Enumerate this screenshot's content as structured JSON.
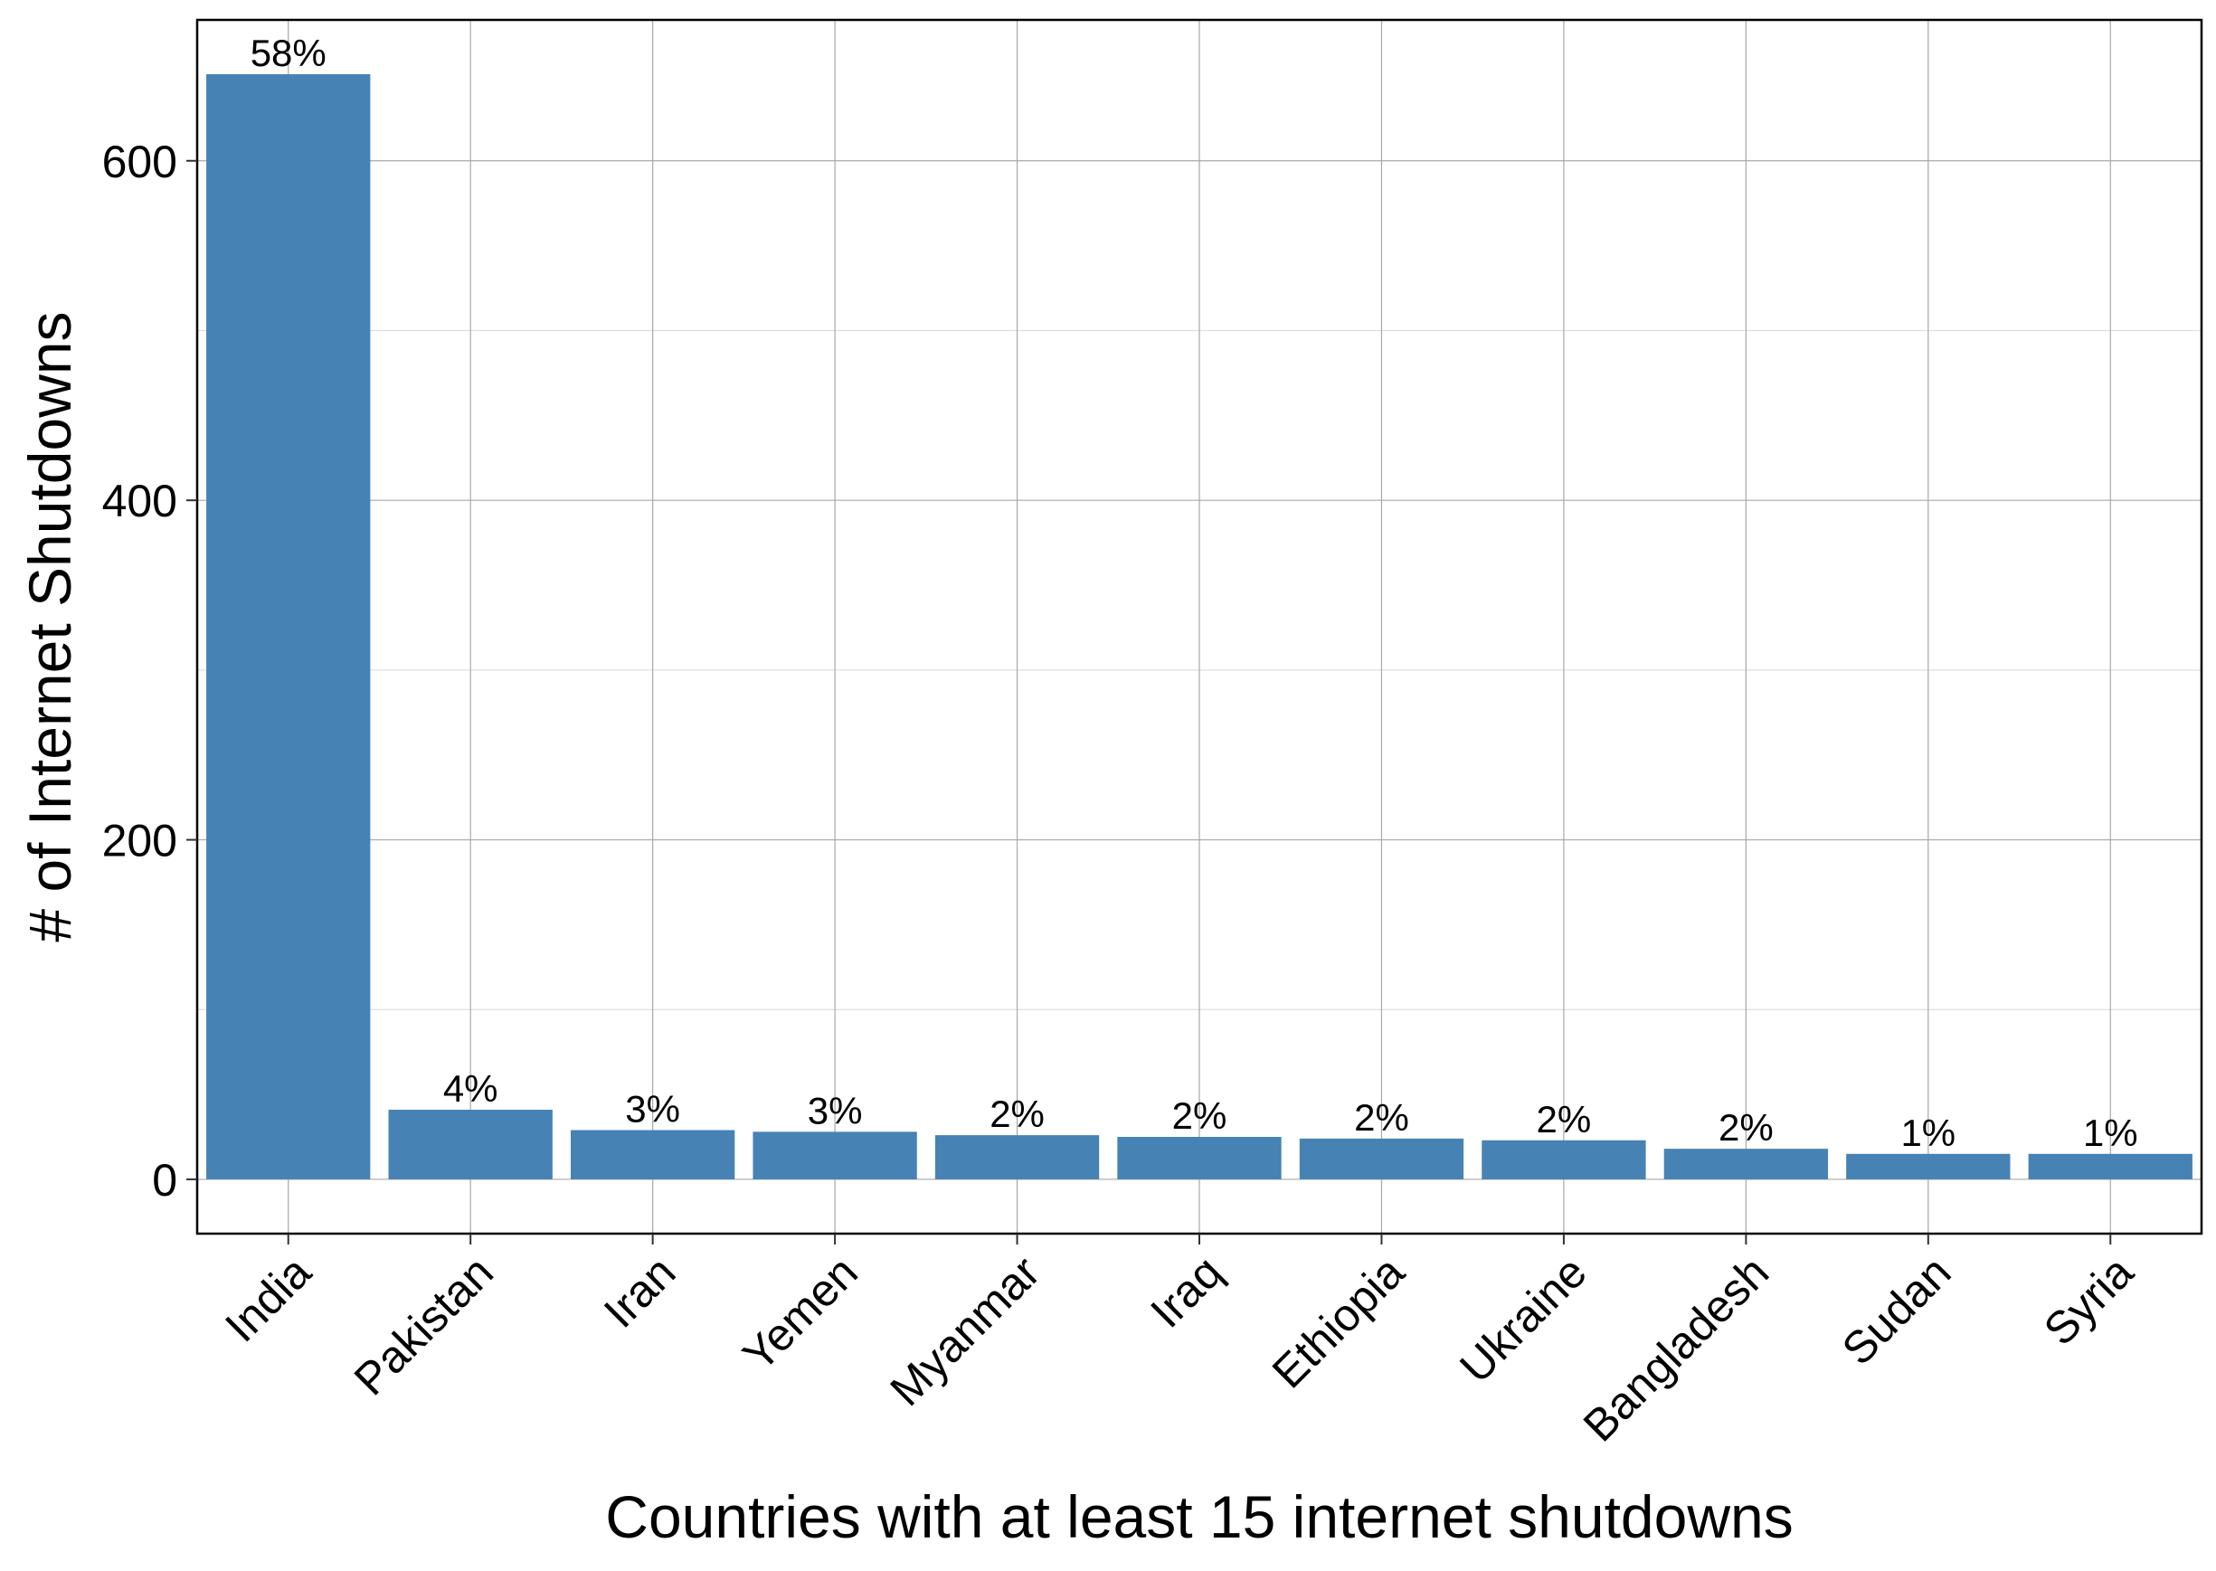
{
  "chart_data": {
    "type": "bar",
    "title": "",
    "xlabel": "Countries with at least 15 internet shutdowns",
    "ylabel": "# of Internet Shutdowns",
    "categories": [
      "India",
      "Pakistan",
      "Iran",
      "Yemen",
      "Myanmar",
      "Iraq",
      "Ethiopia",
      "Ukraine",
      "Bangladesh",
      "Sudan",
      "Syria"
    ],
    "values": [
      651,
      41,
      29,
      28,
      26,
      25,
      24,
      23,
      18,
      15,
      15
    ],
    "labels": [
      "58%",
      "4%",
      "3%",
      "3%",
      "2%",
      "2%",
      "2%",
      "2%",
      "2%",
      "1%",
      "1%"
    ],
    "ylim": [
      -32,
      683
    ],
    "yticks": [
      0,
      200,
      400,
      600
    ],
    "yticks_minor": [
      100,
      300,
      500
    ],
    "grid": true,
    "bar_color": "#4682B4",
    "legend": "none"
  }
}
